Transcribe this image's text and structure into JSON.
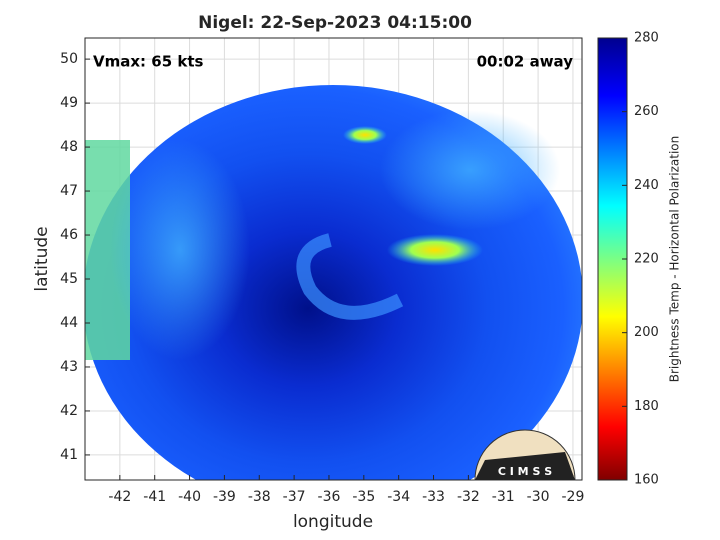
{
  "chart_data": {
    "type": "image",
    "title": "Nigel: 22-Sep-2023 04:15:00",
    "annotations": [
      "Vmax: 65 kts",
      "00:02 away"
    ],
    "xlabel": "longitude",
    "ylabel": "latitude",
    "xlim": [
      -43.0,
      -28.74
    ],
    "xticks": [
      -42,
      -41,
      -40,
      -39,
      -38,
      -37,
      -36,
      -35,
      -34,
      -33,
      -32,
      -31,
      -30,
      -29
    ],
    "ylim": [
      40.43,
      50.48
    ],
    "yticks": [
      41,
      42,
      43,
      44,
      45,
      46,
      47,
      48,
      49,
      50
    ],
    "grid": true,
    "colorbar": {
      "label": "Brightness Temp - Horizontal Polarization",
      "lim": [
        160,
        280
      ],
      "ticks": [
        160,
        180,
        200,
        220,
        240,
        260,
        280
      ]
    },
    "logo": "C I M S S"
  }
}
